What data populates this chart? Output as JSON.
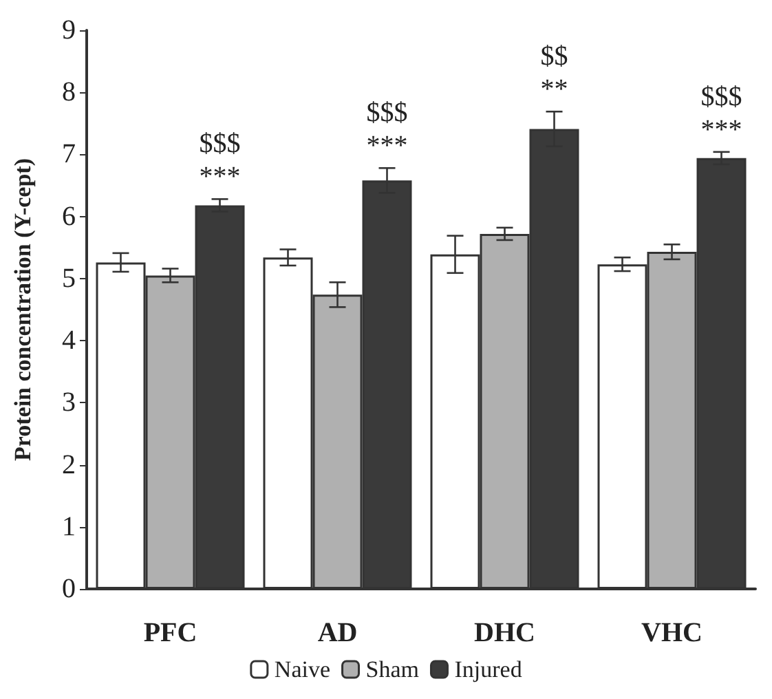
{
  "chart_data": {
    "type": "bar",
    "ylabel": "Protein concentration (Y-cept)",
    "categories": [
      "PFC",
      "AD",
      "DHC",
      "VHC"
    ],
    "series": [
      {
        "name": "Naive",
        "color": "#ffffff",
        "values": [
          5.26,
          5.34,
          5.39,
          5.23
        ],
        "errors": [
          0.15,
          0.13,
          0.3,
          0.11
        ]
      },
      {
        "name": "Sham",
        "color": "#b0b0b0",
        "values": [
          5.05,
          4.74,
          5.72,
          5.43
        ],
        "errors": [
          0.11,
          0.2,
          0.1,
          0.12
        ]
      },
      {
        "name": "Injured",
        "color": "#3a3a3a",
        "values": [
          6.18,
          6.58,
          7.41,
          6.94
        ],
        "errors": [
          0.1,
          0.2,
          0.28,
          0.1
        ]
      }
    ],
    "ylim": [
      0,
      9
    ],
    "yticks": [
      0,
      1,
      2,
      3,
      4,
      5,
      6,
      7,
      8,
      9
    ],
    "grid": false,
    "legend": "bottom",
    "annotations": [
      "$$$",
      "***",
      "$$$",
      "***",
      "$$",
      "**",
      "$$$",
      "***"
    ]
  }
}
